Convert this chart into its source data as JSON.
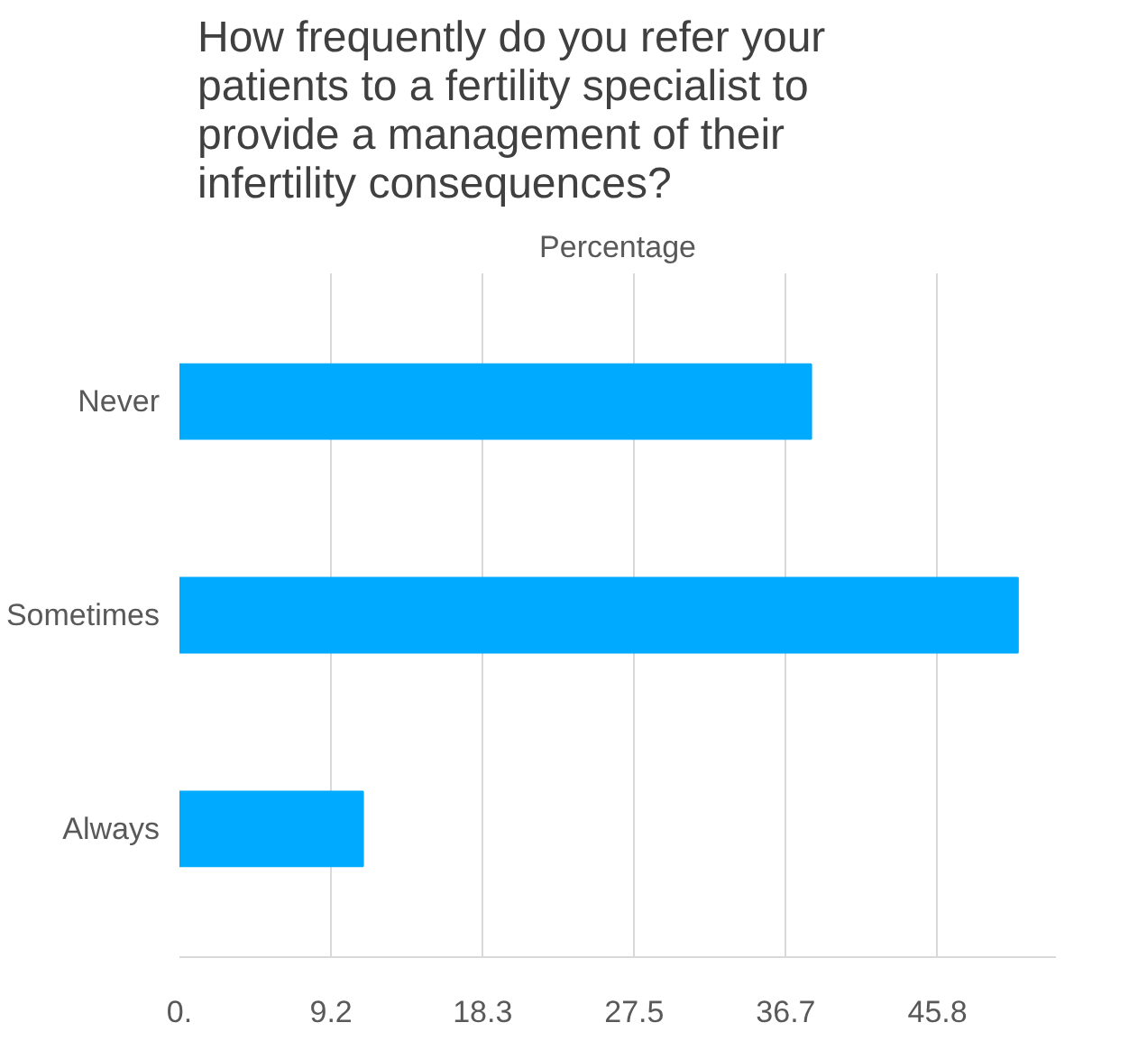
{
  "chart_data": {
    "type": "bar",
    "orientation": "horizontal",
    "title": "How frequently do you refer your patients to a fertility specialist to provide a management of their infertility consequences?",
    "xlabel": "Percentage",
    "categories": [
      "Never",
      "Sometimes",
      "Always"
    ],
    "values": [
      38.2,
      50.7,
      11.1
    ],
    "color": "#00aaff",
    "xlim": [
      0,
      53
    ],
    "xticks": [
      {
        "value": 0,
        "label": "0."
      },
      {
        "value": 9.1667,
        "label": "9.2"
      },
      {
        "value": 18.333,
        "label": "18.3"
      },
      {
        "value": 27.5,
        "label": "27.5"
      },
      {
        "value": 36.667,
        "label": "36.7"
      },
      {
        "value": 45.833,
        "label": "45.8"
      }
    ],
    "grid": "x"
  }
}
